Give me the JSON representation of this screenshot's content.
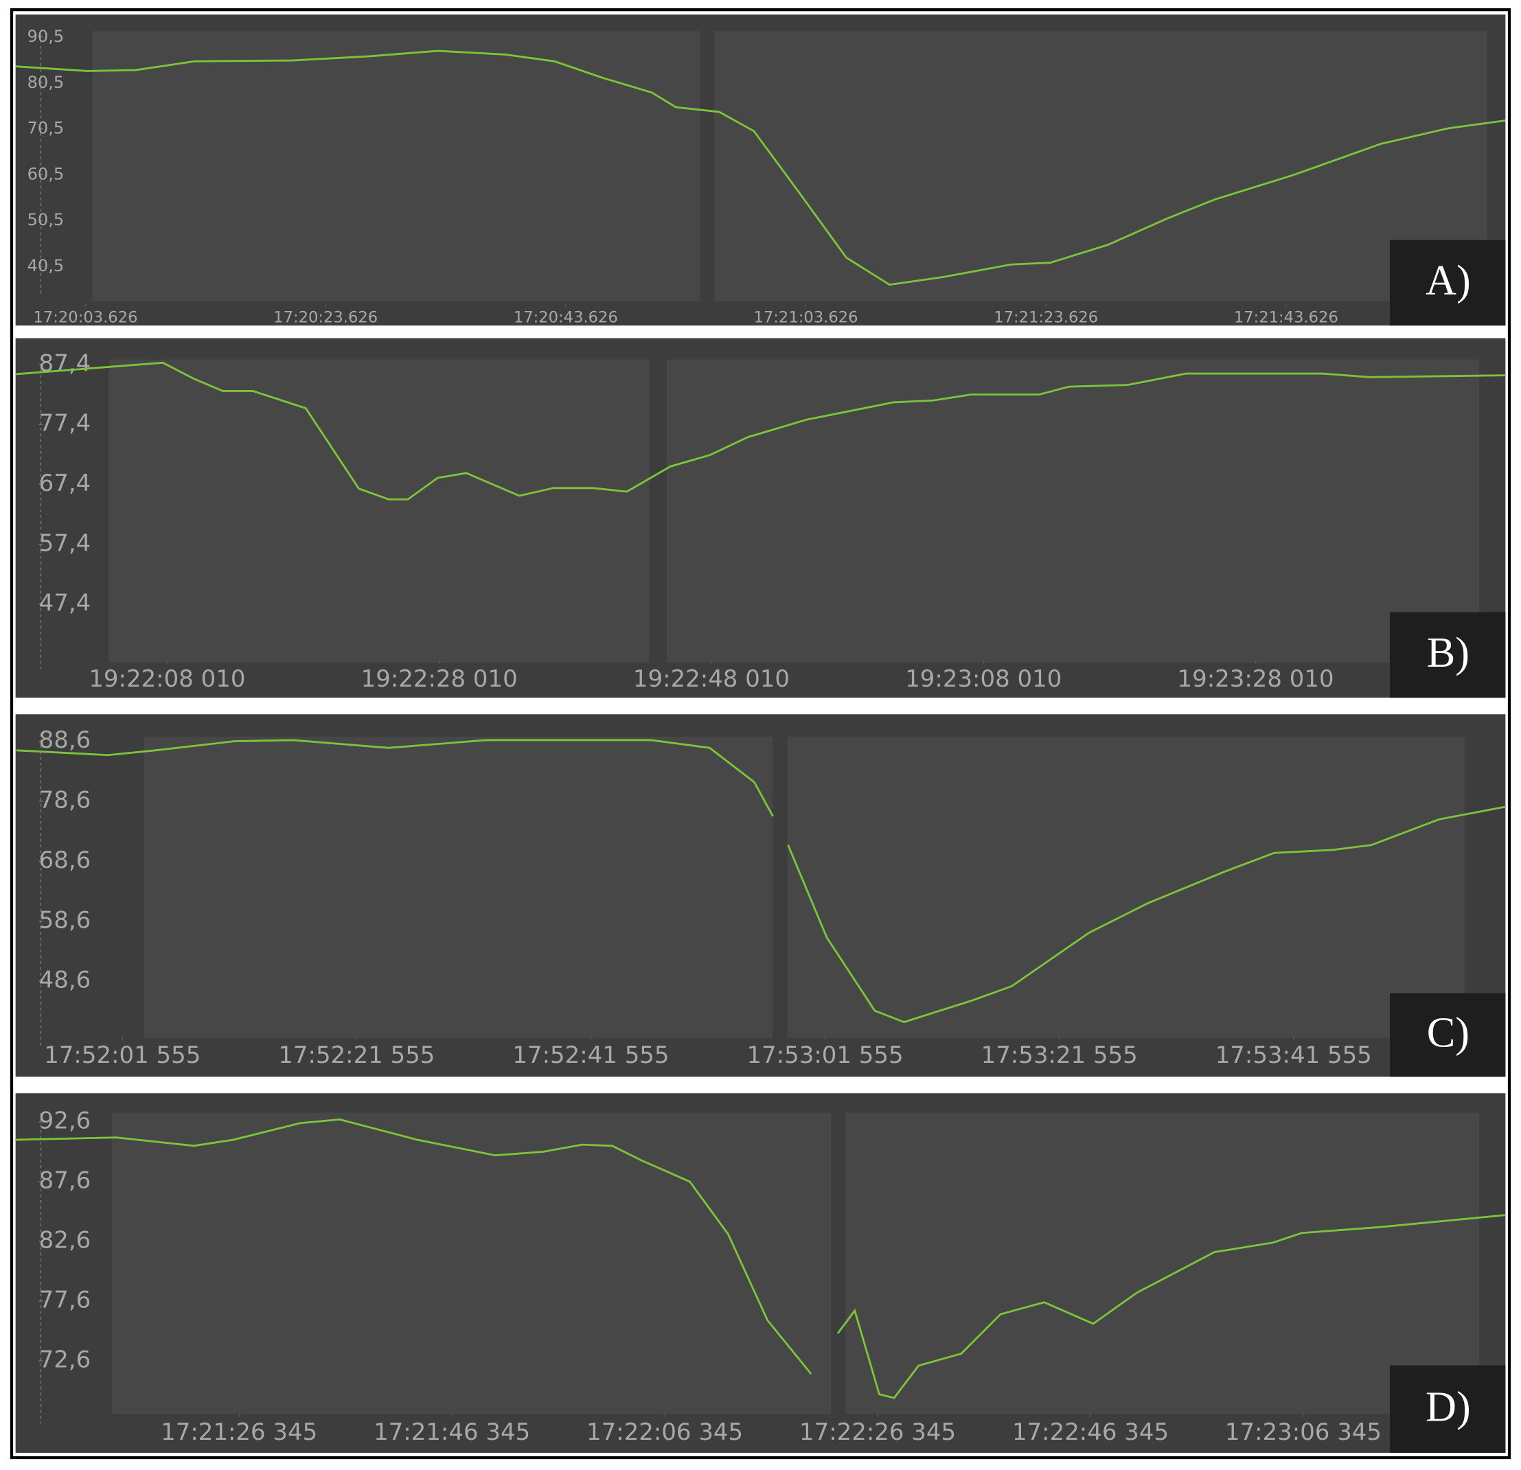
{
  "chart_data": [
    {
      "type": "line",
      "title": "A)",
      "color": "#7cc43a",
      "x": [
        62397.8,
        62403.8,
        62407.8,
        62412.7,
        62420.8,
        62427.3,
        62433.0,
        62438.6,
        62442.7,
        62446.7,
        62450.8,
        62452.8,
        62456.4,
        62459.3,
        62462.9,
        62467.0,
        62470.6,
        62475.1,
        62480.7,
        62484.0,
        62488.8,
        62493.7,
        62497.7,
        62504.2,
        62511.5,
        62517.1,
        62521.9
      ],
      "values": [
        84.1,
        83.1,
        83.3,
        85.2,
        85.4,
        86.3,
        87.5,
        86.7,
        85.2,
        81.6,
        78.4,
        75.2,
        74.2,
        70.0,
        57.2,
        42.4,
        36.5,
        38.2,
        40.9,
        41.3,
        45.2,
        50.9,
        55.1,
        60.4,
        67.2,
        70.6,
        72.3
      ],
      "xlim": [
        62397.8,
        62521.9
      ],
      "ylim": [
        27.6,
        95.4
      ],
      "yticks": [
        {
          "value": 90.5,
          "label": "90,5"
        },
        {
          "value": 80.5,
          "label": "80,5"
        },
        {
          "value": 70.5,
          "label": "70,5"
        },
        {
          "value": 60.5,
          "label": "60,5"
        },
        {
          "value": 50.5,
          "label": "50,5"
        },
        {
          "value": 40.5,
          "label": "40,5"
        }
      ],
      "xticks": [
        {
          "value": 62403.626,
          "label": "17:20:03.626"
        },
        {
          "value": 62423.626,
          "label": "17:20:23.626"
        },
        {
          "value": 62443.626,
          "label": "17:20:43.626"
        },
        {
          "value": 62463.626,
          "label": "17:21:03.626"
        },
        {
          "value": 62483.626,
          "label": "17:21:23.626"
        },
        {
          "value": 62503.626,
          "label": "17:21:43.626"
        }
      ]
    },
    {
      "type": "line",
      "title": "B)",
      "color": "#7cc43a",
      "x": [
        69716.9,
        69721.4,
        69727.7,
        69730.0,
        69732.1,
        69734.3,
        69738.2,
        69742.1,
        69744.3,
        69745.7,
        69747.9,
        69750.0,
        69753.9,
        69756.4,
        69759.3,
        69761.8,
        69765.0,
        69767.9,
        69770.7,
        69775.0,
        69781.4,
        69784.3,
        69787.1,
        69792.1,
        69794.3,
        69798.6,
        69802.9,
        69812.9,
        69816.4,
        69826.4
      ],
      "values": [
        85.8,
        86.6,
        87.7,
        85.0,
        83.0,
        83.0,
        80.1,
        66.7,
        64.9,
        64.9,
        68.5,
        69.3,
        65.5,
        66.8,
        66.8,
        66.2,
        70.4,
        72.3,
        75.3,
        78.2,
        81.1,
        81.4,
        82.4,
        82.4,
        83.7,
        84.0,
        85.9,
        85.9,
        85.3,
        85.6
      ],
      "xlim": [
        69716.87,
        69826.37
      ],
      "ylim": [
        31.8,
        91.8
      ],
      "yticks": [
        {
          "value": 87.4,
          "label": "87,4"
        },
        {
          "value": 77.4,
          "label": "77,4"
        },
        {
          "value": 67.4,
          "label": "67,4"
        },
        {
          "value": 57.4,
          "label": "57,4"
        },
        {
          "value": 47.4,
          "label": "47,4"
        }
      ],
      "xticks": [
        {
          "value": 69728.01,
          "label": "19:22:08 010"
        },
        {
          "value": 69748.01,
          "label": "19:22:28 010"
        },
        {
          "value": 69768.01,
          "label": "19:22:48 010"
        },
        {
          "value": 69788.01,
          "label": "19:23:08 010"
        },
        {
          "value": 69808.01,
          "label": "19:23:28 010"
        }
      ]
    },
    {
      "type": "line",
      "title": "C)",
      "color": "#7cc43a",
      "x": [
        64312.5,
        64320.3,
        64324.4,
        64331.1,
        64336.1,
        64344.3,
        64352.6,
        64366.7,
        64371.7,
        64375.5,
        64377.1,
        null,
        64378.4,
        64381.7,
        64385.8,
        64388.3,
        64394.1,
        64397.5,
        64404.1,
        64409.1,
        64415.7,
        64419.9,
        64424.9,
        64428.2,
        64434.0,
        64439.7
      ],
      "values": [
        87.1,
        86.3,
        87.1,
        88.6,
        88.8,
        87.5,
        88.8,
        88.8,
        87.5,
        81.8,
        76.1,
        null,
        71.3,
        55.9,
        43.7,
        41.8,
        45.4,
        47.8,
        56.7,
        61.6,
        66.9,
        70.0,
        70.5,
        71.3,
        75.6,
        77.7
      ],
      "xlim": [
        64312.43,
        64439.65
      ],
      "ylim": [
        32.7,
        93.1
      ],
      "yticks": [
        {
          "value": 88.6,
          "label": "88,6"
        },
        {
          "value": 78.6,
          "label": "78,6"
        },
        {
          "value": 68.6,
          "label": "68,6"
        },
        {
          "value": 58.6,
          "label": "58,6"
        },
        {
          "value": 48.6,
          "label": "48,6"
        }
      ],
      "xticks": [
        {
          "value": 64321.555,
          "label": "17:52:01 555"
        },
        {
          "value": 64341.555,
          "label": "17:52:21 555"
        },
        {
          "value": 64361.555,
          "label": "17:52:41 555"
        },
        {
          "value": 64381.555,
          "label": "17:53:01 555"
        },
        {
          "value": 64401.555,
          "label": "17:53:21 555"
        },
        {
          "value": 64421.555,
          "label": "17:53:41 555"
        }
      ]
    },
    {
      "type": "line",
      "title": "D)",
      "color": "#7cc43a",
      "x": [
        62465.3,
        62474.8,
        62482.1,
        62485.8,
        62492.1,
        62495.8,
        62503.1,
        62510.4,
        62514.9,
        62518.6,
        62521.4,
        62524.1,
        62528.7,
        62532.3,
        62536.0,
        62540.1,
        null,
        62542.6,
        62544.2,
        62546.5,
        62547.9,
        62550.2,
        62554.2,
        62557.9,
        62562.0,
        62566.6,
        62570.7,
        62578.0,
        62583.5,
        62586.2,
        62593.6,
        62605.3
      ],
      "values": [
        91.1,
        91.3,
        90.6,
        91.1,
        92.5,
        92.8,
        91.1,
        89.8,
        90.1,
        90.7,
        90.6,
        89.4,
        87.6,
        83.2,
        76.0,
        71.5,
        null,
        74.9,
        76.8,
        69.8,
        69.5,
        72.2,
        73.2,
        76.5,
        77.5,
        75.7,
        78.3,
        81.7,
        82.5,
        83.3,
        83.8,
        84.8
      ],
      "xlim": [
        62465.34,
        62605.34
      ],
      "ylim": [
        64.9,
        95.0
      ],
      "yticks": [
        {
          "value": 92.6,
          "label": "92,6"
        },
        {
          "value": 87.6,
          "label": "87,6"
        },
        {
          "value": 82.6,
          "label": "82,6"
        },
        {
          "value": 77.6,
          "label": "77,6"
        },
        {
          "value": 72.6,
          "label": "72,6"
        }
      ],
      "xticks": [
        {
          "value": 62486.345,
          "label": "17:21:26 345"
        },
        {
          "value": 62506.345,
          "label": "17:21:46 345"
        },
        {
          "value": 62526.345,
          "label": "17:22:06 345"
        },
        {
          "value": 62546.345,
          "label": "17:22:26 345"
        },
        {
          "value": 62566.345,
          "label": "17:22:46 345"
        },
        {
          "value": 62586.345,
          "label": "17:23:06 345"
        }
      ]
    }
  ]
}
